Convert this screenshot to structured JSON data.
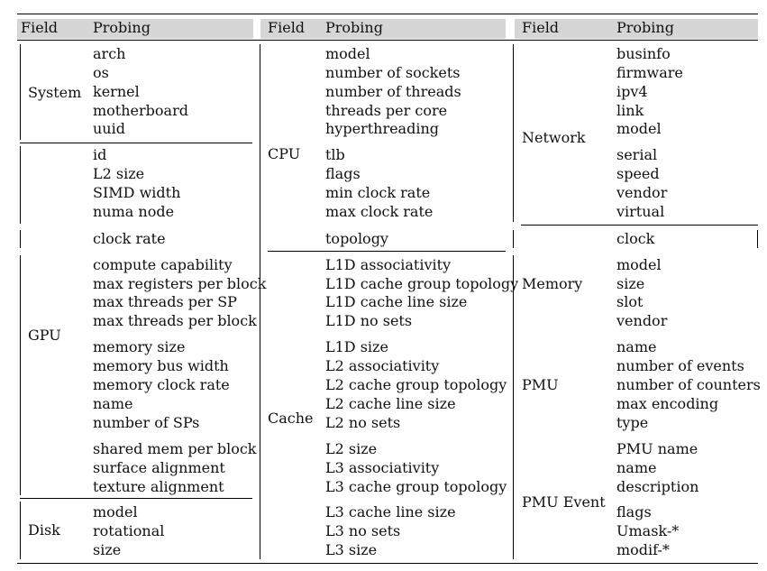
{
  "headers": {
    "field": "Field",
    "probing": "Probing"
  },
  "col1": {
    "fields": {
      "system": "System",
      "gpu": "GPU",
      "disk": "Disk"
    },
    "system": [
      "arch",
      "os",
      "kernel",
      "motherboard",
      "uuid"
    ],
    "gpu_a": [
      "id",
      "L2 size",
      "SIMD width",
      "numa node"
    ],
    "gpu_b": [
      "clock rate"
    ],
    "gpu_c": [
      "compute capability",
      "max registers per block",
      "max threads per SP",
      "max threads per block"
    ],
    "gpu_d": [
      "memory size",
      "memory bus width",
      "memory clock rate",
      "name",
      "number of SPs"
    ],
    "gpu_e": [
      "shared mem per block",
      "surface alignment",
      "texture alignment"
    ],
    "disk": [
      "model",
      "rotational",
      "size"
    ]
  },
  "col2": {
    "fields": {
      "cpu": "CPU",
      "cache": "Cache"
    },
    "cpu_a": [
      "model",
      "number of sockets",
      "number of threads",
      "threads per core",
      "hyperthreading"
    ],
    "cpu_b": [
      "tlb",
      "flags",
      "min clock rate",
      "max clock rate"
    ],
    "cpu_c": [
      "topology"
    ],
    "cache_a": [
      "L1D associativity",
      "L1D cache group topology",
      "L1D cache line size",
      "L1D no sets"
    ],
    "cache_b": [
      "L1D size",
      "L2 associativity",
      "L2 cache group topology",
      "L2 cache line size",
      "L2 no sets"
    ],
    "cache_c": [
      "L2 size",
      "L3 associativity",
      "L3 cache group topology"
    ],
    "cache_d": [
      "L3 cache line size",
      "L3 no sets",
      "L3 size"
    ]
  },
  "col3": {
    "fields": {
      "network": "Network",
      "memory": "Memory",
      "pmu": "PMU",
      "pmu_event": "PMU Event"
    },
    "net_a": [
      "businfo",
      "firmware",
      "ipv4",
      "link",
      "model"
    ],
    "net_b": [
      "serial",
      "speed",
      "vendor",
      "virtual"
    ],
    "mem_a": [
      "clock"
    ],
    "mem_b": [
      "model",
      "size",
      "slot",
      "vendor"
    ],
    "pmu": [
      "name",
      "number of events",
      "number of counters",
      "max encoding",
      "type"
    ],
    "pmuev_a": [
      "PMU name",
      "name",
      "description"
    ],
    "pmuev_b": [
      "flags",
      "Umask-*",
      "modif-*"
    ]
  }
}
